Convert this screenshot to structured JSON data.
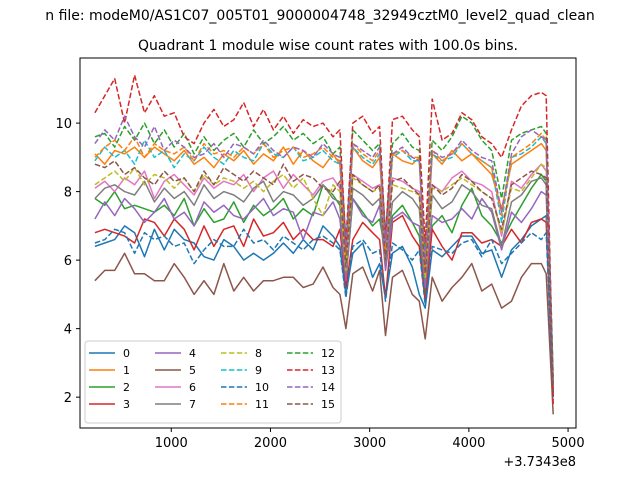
{
  "chart_data": {
    "type": "line",
    "suptitle": "n file: modeM0/AS1C07_005T01_9000004748_32949cztM0_level2_quad_clean",
    "title": "Quadrant 1 module wise count rates with 100.0s bins.",
    "xlabel": "",
    "ylabel": "",
    "x_offset_label": "+3.7343e8",
    "xlim": [
      80,
      5080
    ],
    "ylim": [
      1.1,
      11.9
    ],
    "xticks": [
      1000,
      2000,
      3000,
      4000,
      5000
    ],
    "yticks": [
      2,
      4,
      6,
      8,
      10
    ],
    "x": [
      230,
      330,
      430,
      530,
      630,
      730,
      830,
      930,
      1030,
      1130,
      1230,
      1330,
      1430,
      1530,
      1630,
      1730,
      1830,
      1930,
      2030,
      2130,
      2230,
      2330,
      2430,
      2530,
      2630,
      2700,
      2760,
      2830,
      2930,
      3030,
      3100,
      3160,
      3230,
      3330,
      3430,
      3500,
      3560,
      3630,
      3730,
      3830,
      3930,
      4030,
      4130,
      4230,
      4330,
      4430,
      4530,
      4630,
      4730,
      4780,
      4850
    ],
    "legend": {
      "position": "lower-left",
      "ncol": 4
    },
    "series": [
      {
        "name": "0",
        "color": "#1f77b4",
        "dash": "solid",
        "values": [
          6.4,
          6.5,
          6.6,
          7.0,
          6.8,
          6.1,
          6.9,
          6.3,
          6.9,
          6.6,
          6.5,
          6.1,
          6.0,
          6.6,
          6.4,
          6.0,
          6.2,
          6.0,
          6.2,
          6.5,
          6.2,
          6.6,
          6.3,
          7.0,
          6.7,
          6.4,
          5.0,
          6.2,
          6.5,
          5.5,
          5.9,
          4.9,
          6.2,
          6.4,
          5.8,
          5.0,
          4.6,
          6.3,
          6.1,
          6.4,
          6.7,
          6.7,
          6.2,
          6.3,
          5.5,
          6.3,
          6.6,
          7.0,
          7.2,
          7.3,
          2.0
        ]
      },
      {
        "name": "1",
        "color": "#ff7f0e",
        "dash": "solid",
        "values": [
          9.1,
          8.8,
          9.2,
          9.1,
          9.3,
          9.0,
          9.3,
          9.1,
          8.9,
          9.2,
          8.8,
          9.0,
          8.7,
          9.1,
          8.9,
          9.2,
          8.8,
          9.1,
          8.9,
          9.3,
          8.8,
          9.2,
          8.9,
          8.7,
          9.1,
          8.8,
          6.0,
          9.3,
          8.9,
          8.7,
          9.0,
          6.3,
          9.1,
          8.9,
          8.8,
          9.0,
          5.5,
          9.1,
          8.8,
          9.2,
          8.9,
          9.1,
          8.8,
          8.5,
          7.5,
          8.8,
          9.0,
          9.2,
          9.4,
          9.2,
          2.2
        ]
      },
      {
        "name": "2",
        "color": "#2ca02c",
        "dash": "solid",
        "values": [
          7.8,
          7.6,
          8.0,
          7.5,
          7.6,
          7.5,
          7.4,
          7.6,
          7.3,
          7.8,
          7.0,
          7.5,
          7.1,
          7.2,
          7.7,
          7.1,
          7.6,
          7.3,
          7.5,
          7.8,
          7.2,
          7.5,
          7.3,
          8.2,
          7.9,
          7.6,
          5.4,
          7.8,
          7.4,
          7.0,
          7.2,
          6.2,
          7.3,
          7.6,
          7.1,
          6.7,
          5.0,
          7.0,
          7.3,
          6.8,
          7.6,
          8.1,
          7.3,
          7.0,
          6.5,
          7.1,
          7.6,
          8.1,
          8.5,
          8.3,
          2.1
        ]
      },
      {
        "name": "3",
        "color": "#d62728",
        "dash": "solid",
        "values": [
          6.8,
          6.9,
          6.8,
          6.7,
          6.5,
          7.2,
          7.1,
          6.7,
          7.2,
          6.9,
          6.3,
          7.0,
          6.4,
          6.9,
          7.0,
          6.4,
          7.2,
          6.7,
          6.8,
          7.1,
          6.6,
          6.9,
          6.6,
          6.6,
          6.4,
          6.9,
          5.2,
          6.6,
          7.1,
          6.8,
          6.6,
          4.9,
          7.1,
          7.3,
          6.7,
          6.4,
          4.8,
          6.9,
          6.4,
          6.0,
          6.8,
          6.8,
          6.5,
          6.6,
          6.4,
          6.9,
          6.5,
          7.1,
          7.2,
          7.1,
          2.0
        ]
      },
      {
        "name": "4",
        "color": "#9467bd",
        "dash": "solid",
        "values": [
          7.2,
          7.7,
          7.3,
          7.8,
          7.5,
          7.1,
          7.4,
          7.8,
          7.2,
          7.4,
          7.0,
          7.7,
          7.4,
          7.6,
          7.3,
          7.2,
          7.5,
          7.8,
          7.3,
          7.5,
          7.4,
          6.6,
          7.4,
          7.3,
          7.7,
          7.2,
          5.4,
          7.8,
          7.3,
          7.1,
          7.6,
          5.7,
          7.2,
          7.4,
          7.1,
          7.0,
          5.2,
          7.3,
          7.1,
          7.2,
          7.5,
          7.2,
          7.8,
          7.4,
          6.3,
          7.4,
          7.1,
          7.5,
          8.0,
          7.9,
          2.1
        ]
      },
      {
        "name": "5",
        "color": "#8c564b",
        "dash": "solid",
        "values": [
          5.4,
          5.7,
          5.7,
          6.2,
          5.6,
          5.6,
          5.4,
          5.4,
          5.9,
          5.5,
          5.0,
          5.4,
          5.0,
          5.9,
          5.1,
          5.5,
          5.1,
          5.4,
          5.4,
          5.5,
          5.5,
          5.2,
          5.3,
          5.8,
          5.2,
          5.0,
          4.0,
          5.6,
          5.8,
          5.1,
          5.7,
          3.8,
          5.5,
          5.7,
          5.0,
          4.8,
          3.7,
          5.5,
          4.8,
          5.2,
          5.5,
          5.9,
          5.1,
          5.3,
          4.6,
          4.8,
          5.5,
          5.9,
          5.9,
          5.6,
          1.5
        ]
      },
      {
        "name": "6",
        "color": "#e377c2",
        "dash": "solid",
        "values": [
          8.1,
          8.3,
          8.0,
          8.4,
          8.2,
          8.6,
          7.8,
          8.3,
          8.5,
          8.2,
          7.9,
          8.4,
          8.1,
          8.3,
          8.2,
          8.5,
          8.0,
          8.4,
          8.6,
          8.1,
          8.5,
          8.2,
          7.9,
          8.3,
          8.4,
          8.1,
          5.8,
          8.5,
          8.3,
          8.1,
          8.2,
          6.1,
          8.4,
          8.3,
          8.1,
          8.0,
          5.6,
          8.2,
          8.0,
          8.4,
          8.6,
          8.3,
          8.2,
          8.0,
          6.7,
          8.3,
          8.1,
          8.5,
          8.8,
          8.6,
          2.3
        ]
      },
      {
        "name": "7",
        "color": "#7f7f7f",
        "dash": "solid",
        "values": [
          7.8,
          8.1,
          8.2,
          8.0,
          7.9,
          8.3,
          7.7,
          8.1,
          7.8,
          8.0,
          7.6,
          8.2,
          7.8,
          8.0,
          7.9,
          7.7,
          8.1,
          8.3,
          7.7,
          8.0,
          7.9,
          7.6,
          7.8,
          8.2,
          7.8,
          7.7,
          5.6,
          8.1,
          7.9,
          7.6,
          7.8,
          5.9,
          7.7,
          8.0,
          7.8,
          7.5,
          5.4,
          7.9,
          7.5,
          7.7,
          8.2,
          8.0,
          7.6,
          7.5,
          6.4,
          7.7,
          7.9,
          8.3,
          8.4,
          8.2,
          2.2
        ]
      },
      {
        "name": "8",
        "color": "#bcbd22",
        "dash": "dashed",
        "values": [
          8.2,
          8.4,
          8.6,
          8.3,
          8.7,
          8.2,
          8.5,
          8.4,
          8.1,
          8.4,
          8.0,
          8.5,
          8.2,
          8.4,
          8.3,
          8.1,
          8.3,
          8.0,
          8.3,
          8.5,
          8.1,
          8.4,
          7.8,
          7.3,
          8.2,
          8.0,
          5.7,
          8.4,
          8.2,
          8.0,
          8.1,
          6.0,
          8.2,
          8.1,
          8.0,
          7.9,
          5.5,
          8.1,
          8.0,
          8.2,
          8.4,
          8.2,
          8.0,
          7.8,
          6.8,
          8.1,
          8.0,
          8.4,
          8.8,
          8.7,
          2.3
        ]
      },
      {
        "name": "9",
        "color": "#17becf",
        "dash": "dashed",
        "values": [
          8.9,
          9.3,
          9.0,
          9.2,
          8.8,
          9.5,
          9.0,
          9.2,
          8.7,
          9.1,
          8.9,
          9.3,
          9.0,
          8.8,
          9.2,
          9.0,
          8.9,
          9.4,
          9.1,
          9.0,
          9.3,
          8.9,
          9.0,
          9.2,
          8.9,
          8.8,
          6.2,
          9.3,
          9.0,
          8.8,
          9.1,
          6.4,
          9.0,
          9.2,
          8.9,
          8.9,
          5.9,
          9.1,
          8.9,
          9.0,
          9.4,
          9.1,
          8.9,
          8.7,
          7.1,
          9.0,
          9.1,
          9.3,
          9.6,
          9.4,
          2.4
        ]
      },
      {
        "name": "10",
        "color": "#1f77b4",
        "dash": "dashed",
        "values": [
          6.5,
          6.6,
          6.9,
          6.8,
          6.2,
          6.8,
          6.6,
          6.7,
          6.4,
          6.5,
          5.9,
          6.3,
          6.6,
          6.4,
          6.4,
          6.9,
          6.5,
          6.6,
          6.3,
          6.7,
          6.5,
          6.3,
          6.6,
          6.7,
          6.5,
          6.3,
          4.9,
          6.4,
          6.6,
          6.2,
          6.3,
          4.8,
          6.5,
          6.3,
          6.0,
          6.3,
          4.7,
          6.4,
          6.3,
          6.2,
          6.5,
          6.6,
          6.1,
          6.6,
          5.9,
          6.2,
          6.5,
          6.8,
          6.6,
          6.8,
          2.0
        ]
      },
      {
        "name": "11",
        "color": "#ff7f0e",
        "dash": "dashed",
        "values": [
          9.0,
          9.3,
          9.5,
          9.2,
          9.6,
          9.0,
          9.4,
          9.2,
          9.1,
          9.3,
          8.9,
          9.4,
          9.1,
          9.2,
          9.0,
          9.3,
          9.1,
          9.4,
          9.0,
          9.2,
          9.3,
          9.0,
          9.1,
          9.3,
          9.0,
          8.9,
          6.1,
          9.4,
          9.1,
          8.9,
          9.2,
          6.3,
          9.1,
          9.2,
          9.0,
          9.0,
          5.7,
          9.2,
          8.9,
          9.1,
          9.4,
          9.1,
          8.9,
          8.7,
          7.3,
          9.0,
          9.2,
          9.4,
          9.7,
          9.5,
          2.3
        ]
      },
      {
        "name": "12",
        "color": "#2ca02c",
        "dash": "dashed",
        "values": [
          9.6,
          9.7,
          9.3,
          9.9,
          9.5,
          10.0,
          9.4,
          9.8,
          9.3,
          9.7,
          9.1,
          9.6,
          9.2,
          9.5,
          9.7,
          9.3,
          9.8,
          9.4,
          9.6,
          9.9,
          9.5,
          9.7,
          9.4,
          9.6,
          9.1,
          9.3,
          6.6,
          9.8,
          9.5,
          9.2,
          9.4,
          6.8,
          9.4,
          9.7,
          9.3,
          9.2,
          6.3,
          9.5,
          9.2,
          9.6,
          10.2,
          10.0,
          9.5,
          9.2,
          7.8,
          9.5,
          9.7,
          9.8,
          9.9,
          9.7,
          2.6
        ]
      },
      {
        "name": "13",
        "color": "#d62728",
        "dash": "dashed",
        "values": [
          10.3,
          10.8,
          11.3,
          10.0,
          11.4,
          10.3,
          10.8,
          10.2,
          10.3,
          9.6,
          9.4,
          10.0,
          10.4,
          9.9,
          10.1,
          10.6,
          9.9,
          10.4,
          9.8,
          10.2,
          9.7,
          10.1,
          9.9,
          10.0,
          9.6,
          9.8,
          6.4,
          10.0,
          10.2,
          9.7,
          9.9,
          6.6,
          10.1,
          10.2,
          9.8,
          9.6,
          6.5,
          10.7,
          9.5,
          9.7,
          10.3,
          10.1,
          9.6,
          9.4,
          9.0,
          9.8,
          10.5,
          10.8,
          10.9,
          10.8,
          1.8
        ]
      },
      {
        "name": "14",
        "color": "#9467bd",
        "dash": "dashed",
        "values": [
          9.4,
          9.8,
          9.5,
          10.2,
          9.6,
          9.3,
          9.9,
          9.2,
          9.5,
          9.3,
          9.0,
          9.1,
          9.4,
          9.0,
          9.4,
          9.3,
          9.1,
          9.5,
          9.2,
          9.0,
          9.3,
          9.2,
          9.0,
          9.4,
          9.1,
          9.0,
          6.3,
          9.4,
          9.2,
          9.0,
          9.3,
          6.5,
          9.1,
          9.3,
          9.0,
          8.9,
          6.0,
          9.2,
          9.0,
          9.1,
          9.5,
          9.2,
          9.0,
          8.9,
          7.4,
          9.1,
          9.6,
          9.8,
          9.6,
          9.5,
          2.4
        ]
      },
      {
        "name": "15",
        "color": "#8c564b",
        "dash": "dashed",
        "values": [
          8.8,
          8.7,
          8.9,
          8.5,
          8.7,
          8.4,
          8.2,
          8.6,
          8.3,
          8.4,
          8.0,
          8.6,
          8.2,
          8.7,
          8.5,
          8.3,
          8.6,
          8.4,
          8.2,
          8.8,
          8.3,
          8.5,
          8.4,
          8.1,
          8.0,
          8.3,
          5.8,
          8.5,
          8.2,
          8.0,
          8.2,
          6.0,
          8.3,
          8.4,
          8.1,
          7.9,
          5.6,
          8.2,
          7.9,
          8.1,
          8.5,
          8.3,
          8.0,
          7.8,
          6.9,
          8.2,
          8.4,
          8.6,
          8.5,
          8.4,
          2.2
        ]
      }
    ]
  }
}
